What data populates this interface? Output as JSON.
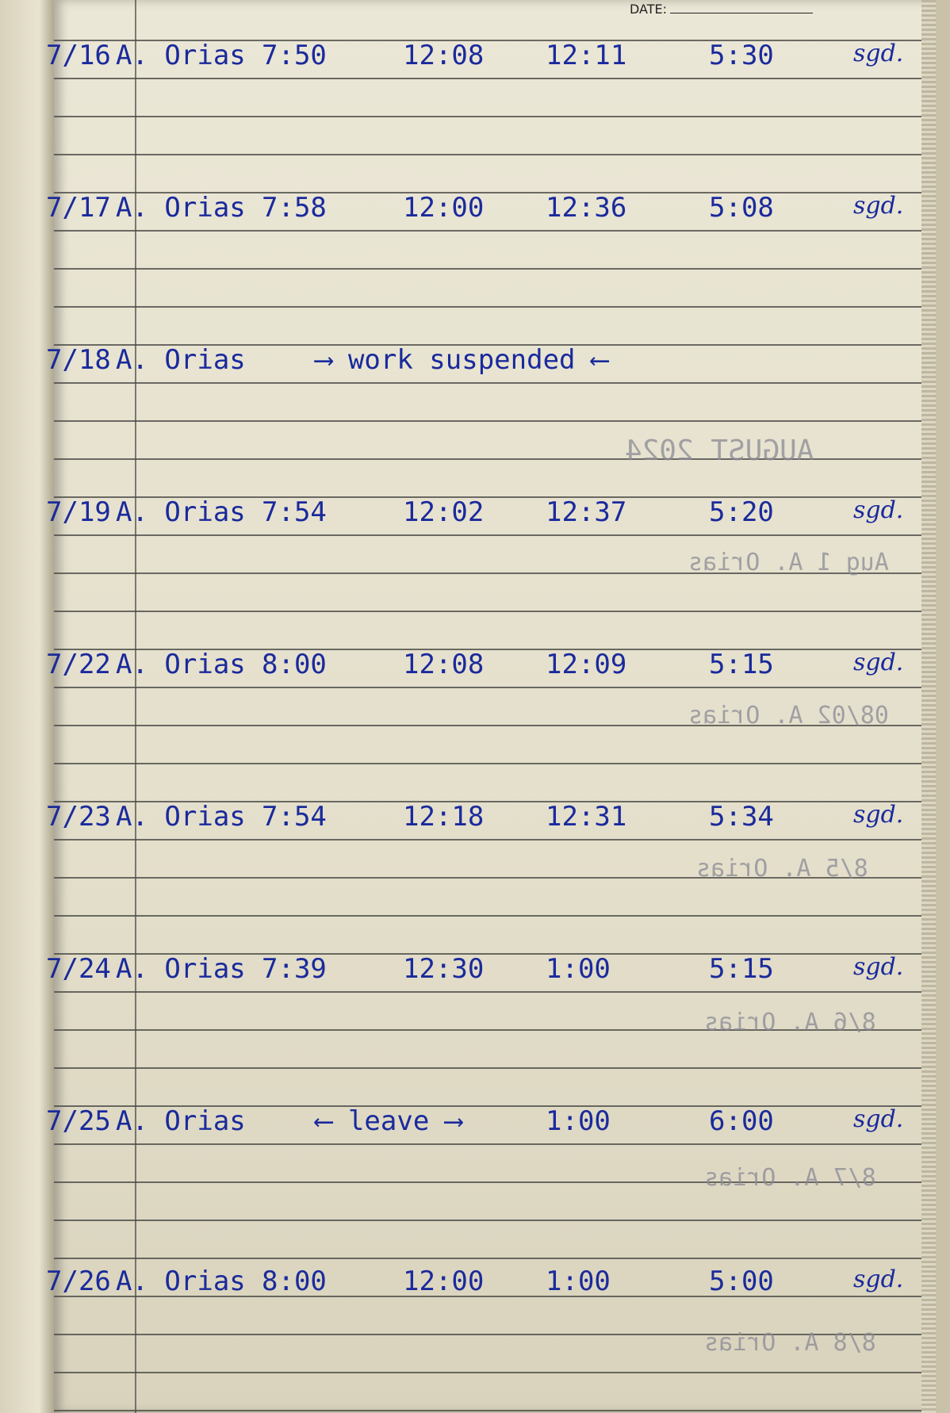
{
  "header": {
    "date_label": "DATE:"
  },
  "entries": [
    {
      "date": "7/16",
      "name": "A. Orias",
      "time_in": "7:50",
      "noon_out": "12:08",
      "noon_in": "12:11",
      "time_out": "5:30",
      "signature": "sgd."
    },
    {
      "date": "7/17",
      "name": "A. Orias",
      "time_in": "7:58",
      "noon_out": "12:00",
      "noon_in": "12:36",
      "time_out": "5:08",
      "signature": "sgd."
    },
    {
      "date": "7/18",
      "name": "A. Orias",
      "note": "⟶ work suspended ⟵",
      "signature": ""
    },
    {
      "date": "7/19",
      "name": "A. Orias",
      "time_in": "7:54",
      "noon_out": "12:02",
      "noon_in": "12:37",
      "time_out": "5:20",
      "signature": "sgd."
    },
    {
      "date": "7/22",
      "name": "A. Orias",
      "time_in": "8:00",
      "noon_out": "12:08",
      "noon_in": "12:09",
      "time_out": "5:15",
      "signature": "sgd."
    },
    {
      "date": "7/23",
      "name": "A. Orias",
      "time_in": "7:54",
      "noon_out": "12:18",
      "noon_in": "12:31",
      "time_out": "5:34",
      "signature": "sgd."
    },
    {
      "date": "7/24",
      "name": "A. Orias",
      "time_in": "7:39",
      "noon_out": "12:30",
      "noon_in": "1:00",
      "time_out": "5:15",
      "signature": "sgd."
    },
    {
      "date": "7/25",
      "name": "A. Orias",
      "note": "⟵ leave ⟶",
      "noon_in": "1:00",
      "time_out": "6:00",
      "signature": "sgd."
    },
    {
      "date": "7/26",
      "name": "A. Orias",
      "time_in": "8:00",
      "noon_out": "12:00",
      "noon_in": "1:00",
      "time_out": "5:00",
      "signature": "sgd."
    }
  ],
  "bleed_through": {
    "heading": "AUGUST 2024",
    "lines": [
      "Aug 1 A. Orias",
      "08/02 A. Orias",
      "8/5 A. Orias",
      "8/6 A. Orias",
      "8/7 A. Orias",
      "8/8 A. Orias"
    ]
  },
  "colors": {
    "ink": "#1a2a9c",
    "paper": "#e8e3d0",
    "rule": "#4a4a46"
  }
}
